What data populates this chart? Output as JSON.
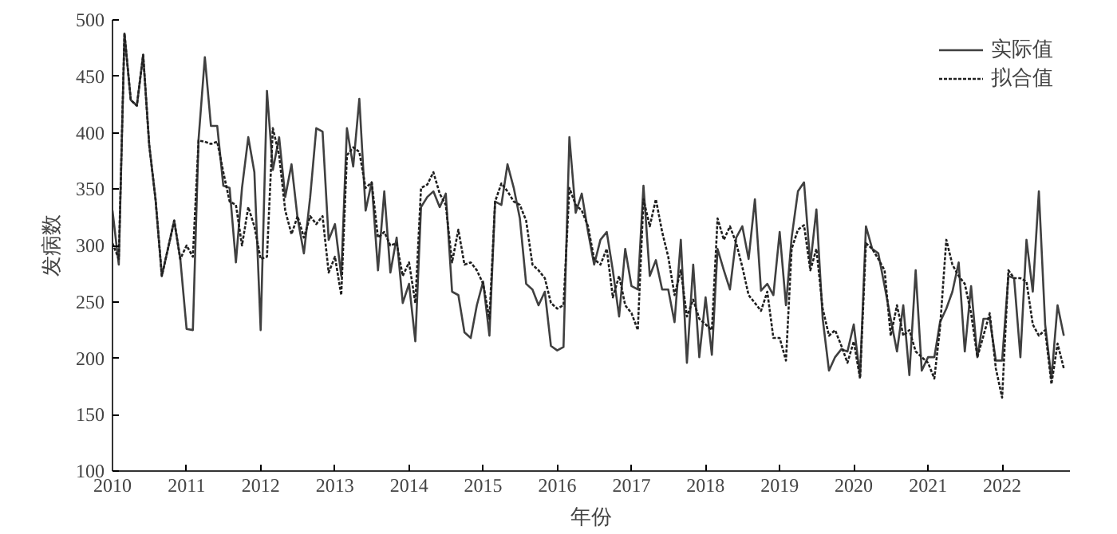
{
  "chart_data": {
    "type": "line",
    "xlabel": "年份",
    "ylabel": "发病数",
    "x": [
      "2010-01",
      "2010-02",
      "2010-03",
      "2010-04",
      "2010-05",
      "2010-06",
      "2010-07",
      "2010-08",
      "2010-09",
      "2010-10",
      "2010-11",
      "2010-12",
      "2011-01",
      "2011-02",
      "2011-03",
      "2011-04",
      "2011-05",
      "2011-06",
      "2011-07",
      "2011-08",
      "2011-09",
      "2011-10",
      "2011-11",
      "2011-12",
      "2012-01",
      "2012-02",
      "2012-03",
      "2012-04",
      "2012-05",
      "2012-06",
      "2012-07",
      "2012-08",
      "2012-09",
      "2012-10",
      "2012-11",
      "2012-12",
      "2013-01",
      "2013-02",
      "2013-03",
      "2013-04",
      "2013-05",
      "2013-06",
      "2013-07",
      "2013-08",
      "2013-09",
      "2013-10",
      "2013-11",
      "2013-12",
      "2014-01",
      "2014-02",
      "2014-03",
      "2014-04",
      "2014-05",
      "2014-06",
      "2014-07",
      "2014-08",
      "2014-09",
      "2014-10",
      "2014-11",
      "2014-12",
      "2015-01",
      "2015-02",
      "2015-03",
      "2015-04",
      "2015-05",
      "2015-06",
      "2015-07",
      "2015-08",
      "2015-09",
      "2015-10",
      "2015-11",
      "2015-12",
      "2016-01",
      "2016-02",
      "2016-03",
      "2016-04",
      "2016-05",
      "2016-06",
      "2016-07",
      "2016-08",
      "2016-09",
      "2016-10",
      "2016-11",
      "2016-12",
      "2017-01",
      "2017-02",
      "2017-03",
      "2017-04",
      "2017-05",
      "2017-06",
      "2017-07",
      "2017-08",
      "2017-09",
      "2017-10",
      "2017-11",
      "2017-12",
      "2018-01",
      "2018-02",
      "2018-03",
      "2018-04",
      "2018-05",
      "2018-06",
      "2018-07",
      "2018-08",
      "2018-09",
      "2018-10",
      "2018-11",
      "2018-12",
      "2019-01",
      "2019-02",
      "2019-03",
      "2019-04",
      "2019-05",
      "2019-06",
      "2019-07",
      "2019-08",
      "2019-09",
      "2019-10",
      "2019-11",
      "2019-12",
      "2020-01",
      "2020-02",
      "2020-03",
      "2020-04",
      "2020-05",
      "2020-06",
      "2020-07",
      "2020-08",
      "2020-09",
      "2020-10",
      "2020-11",
      "2020-12",
      "2021-01",
      "2021-02",
      "2021-03",
      "2021-04",
      "2021-05",
      "2021-06",
      "2021-07",
      "2021-08",
      "2021-09",
      "2021-10",
      "2021-11",
      "2021-12",
      "2022-01",
      "2022-02",
      "2022-03",
      "2022-04",
      "2022-05",
      "2022-06",
      "2022-07",
      "2022-08",
      "2022-09",
      "2022-10",
      "2022-11"
    ],
    "series": [
      {
        "name": "实际值",
        "color": "#404040",
        "line_style": "solid",
        "values": [
          331,
          283,
          488,
          429,
          424,
          469,
          389,
          341,
          273,
          297,
          322,
          288,
          226,
          225,
          394,
          467,
          406,
          406,
          353,
          351,
          285,
          351,
          396,
          365,
          225,
          437,
          367,
          396,
          343,
          372,
          324,
          293,
          343,
          404,
          401,
          305,
          319,
          273,
          404,
          370,
          430,
          331,
          356,
          278,
          348,
          276,
          307,
          249,
          266,
          215,
          334,
          343,
          348,
          334,
          346,
          259,
          256,
          223,
          218,
          247,
          268,
          220,
          339,
          336,
          372,
          351,
          324,
          266,
          261,
          247,
          259,
          211,
          207,
          210,
          396,
          329,
          346,
          312,
          283,
          305,
          312,
          278,
          237,
          297,
          264,
          261,
          353,
          273,
          287,
          261,
          261,
          232,
          305,
          196,
          283,
          201,
          254,
          203,
          297,
          278,
          261,
          307,
          317,
          288,
          341,
          260,
          266,
          256,
          312,
          247,
          307,
          348,
          356,
          283,
          332,
          235,
          189,
          201,
          208,
          206,
          230,
          184,
          317,
          297,
          293,
          264,
          235,
          206,
          247,
          185,
          278,
          189,
          201,
          201,
          232,
          244,
          259,
          285,
          206,
          264,
          201,
          235,
          235,
          198,
          198,
          273,
          271,
          201,
          305,
          259,
          348,
          230,
          182,
          247,
          220
        ]
      },
      {
        "name": "拟合值",
        "color": "#202020",
        "line_style": "dotted",
        "values": [
          302,
          288,
          488,
          429,
          424,
          469,
          389,
          341,
          273,
          297,
          322,
          288,
          300,
          290,
          393,
          392,
          390,
          392,
          365,
          339,
          336,
          300,
          334,
          317,
          288,
          290,
          404,
          380,
          331,
          310,
          326,
          307,
          326,
          319,
          326,
          276,
          290,
          256,
          380,
          387,
          383,
          351,
          356,
          307,
          312,
          300,
          302,
          273,
          285,
          249,
          351,
          354,
          365,
          346,
          336,
          285,
          314,
          283,
          285,
          278,
          266,
          235,
          339,
          355,
          348,
          339,
          336,
          322,
          283,
          278,
          271,
          249,
          244,
          247,
          351,
          336,
          331,
          317,
          288,
          283,
          297,
          254,
          273,
          247,
          240,
          225,
          341,
          317,
          341,
          312,
          290,
          256,
          278,
          237,
          252,
          235,
          230,
          225,
          324,
          305,
          317,
          302,
          281,
          256,
          249,
          242,
          259,
          218,
          218,
          198,
          297,
          314,
          318,
          278,
          297,
          244,
          220,
          225,
          211,
          196,
          215,
          182,
          302,
          297,
          288,
          278,
          220,
          247,
          220,
          225,
          206,
          201,
          196,
          182,
          227,
          305,
          283,
          273,
          266,
          240,
          201,
          220,
          240,
          191,
          165,
          278,
          271,
          271,
          268,
          230,
          220,
          225,
          177,
          213,
          191
        ]
      }
    ],
    "xlim": [
      "2010-01",
      "2022-12"
    ],
    "xticks": [
      {
        "value": "2010",
        "label": "2010"
      },
      {
        "value": "2011",
        "label": "2011"
      },
      {
        "value": "2012",
        "label": "2012"
      },
      {
        "value": "2013",
        "label": "2013"
      },
      {
        "value": "2014",
        "label": "2014"
      },
      {
        "value": "2015",
        "label": "2015"
      },
      {
        "value": "2016",
        "label": "2016"
      },
      {
        "value": "2017",
        "label": "2017"
      },
      {
        "value": "2018",
        "label": "2018"
      },
      {
        "value": "2019",
        "label": "2019"
      },
      {
        "value": "2020",
        "label": "2020"
      },
      {
        "value": "2021",
        "label": "2021"
      },
      {
        "value": "2022",
        "label": "2022"
      }
    ],
    "ylim": [
      100,
      500
    ],
    "yticks": [
      100,
      150,
      200,
      250,
      300,
      350,
      400,
      450,
      500
    ],
    "grid": false,
    "legend": "top right",
    "marker": "none"
  }
}
